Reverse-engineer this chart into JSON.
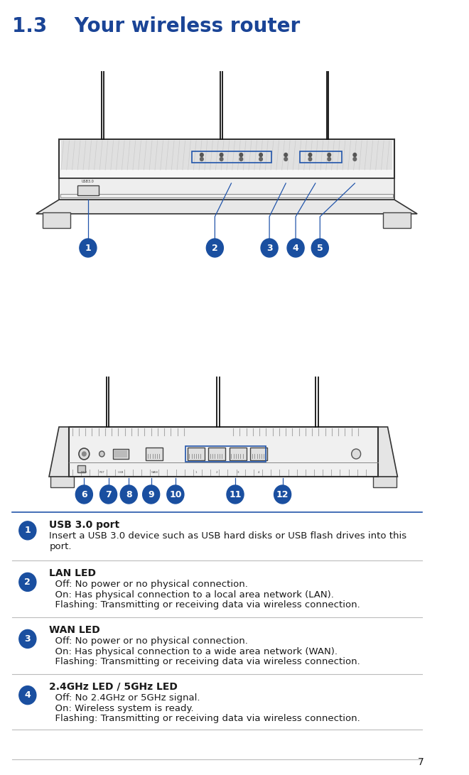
{
  "title_number": "1.3",
  "title_text": "    Your wireless router",
  "title_color": "#1a4496",
  "background_color": "#ffffff",
  "badge_color": "#1a4fa0",
  "badge_text_color": "#ffffff",
  "line_color": "#2255aa",
  "separator_color": "#bbbbbb",
  "body_text_color": "#1a1a1a",
  "page_number": "7",
  "items": [
    {
      "number": "1",
      "title": "USB 3.0 port",
      "lines": [
        "Insert a USB 3.0 device such as USB hard disks or USB flash drives into this",
        "port."
      ]
    },
    {
      "number": "2",
      "title": "LAN LED",
      "lines": [
        "  Off: No power or no physical connection.",
        "  On: Has physical connection to a local area network (LAN).",
        "  Flashing: Transmitting or receiving data via wireless connection."
      ]
    },
    {
      "number": "3",
      "title": "WAN LED",
      "lines": [
        "  Off: No power or no physical connection.",
        "  On: Has physical connection to a wide area network (WAN).",
        "  Flashing: Transmitting or receiving data via wireless connection."
      ]
    },
    {
      "number": "4",
      "title": "2.4GHz LED / 5GHz LED",
      "lines": [
        "  Off: No 2.4GHz or 5GHz signal.",
        "  On: Wireless system is ready.",
        "  Flashing: Transmitting or receiving data via wireless connection."
      ]
    }
  ]
}
